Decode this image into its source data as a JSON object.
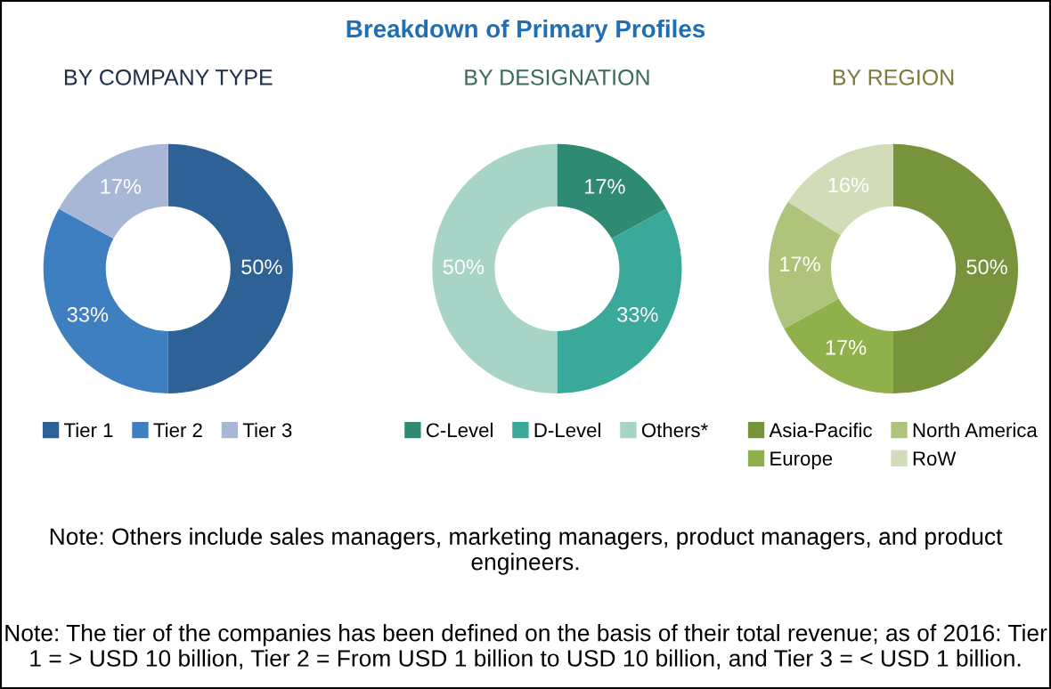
{
  "chart_data": [
    {
      "type": "donut",
      "title": "BY COMPANY TYPE",
      "annotations": [
        "Breakdown of Primary Profiles"
      ],
      "categories": [
        "Tier 1",
        "Tier 2",
        "Tier 3"
      ],
      "values": [
        50,
        33,
        17
      ],
      "value_labels": [
        "50%",
        "33%",
        "17%"
      ],
      "colors": [
        "#2e6196",
        "#3d7fc1",
        "#a8b7d6"
      ],
      "legend": "bottom"
    },
    {
      "type": "donut",
      "title": "BY DESIGNATION",
      "categories": [
        "C-Level",
        "D-Level",
        "Others*"
      ],
      "values": [
        17,
        33,
        50
      ],
      "value_labels": [
        "17%",
        "33%",
        "50%"
      ],
      "colors": [
        "#2e8a73",
        "#3aa99a",
        "#a8d3c7"
      ],
      "legend": "bottom"
    },
    {
      "type": "donut",
      "title": "BY REGION",
      "annotations": [
        "Note: Others include sales managers, marketing managers, product managers, and product engineers.",
        "Note: The tier of the companies has been defined on the basis of their total revenue; as of 2016: Tier 1 = > USD 10 billion, Tier 2 = From USD 1 billion to USD 10 billion, and Tier 3 = < USD 1 billion."
      ],
      "categories": [
        "Asia-Pacific",
        "Europe",
        "North America",
        "RoW"
      ],
      "values": [
        50,
        17,
        17,
        16
      ],
      "value_labels": [
        "50%",
        "17%",
        "17%",
        "16%"
      ],
      "colors": [
        "#77933c",
        "#8fb04a",
        "#adc47a",
        "#d2dcb8"
      ],
      "legend": "bottom"
    }
  ]
}
